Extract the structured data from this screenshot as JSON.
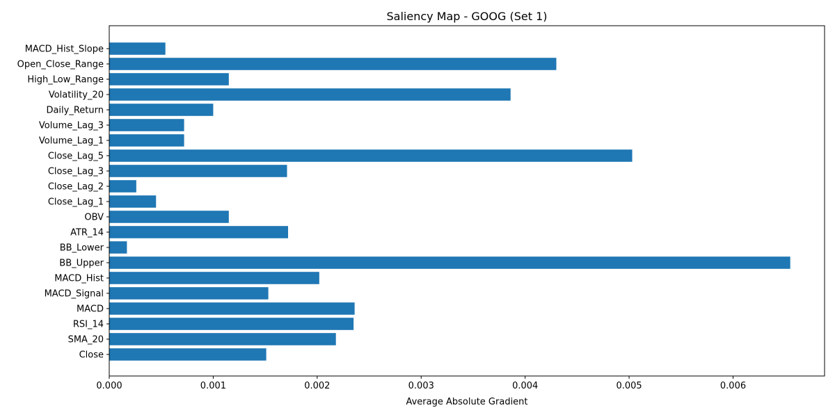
{
  "chart_data": {
    "type": "bar",
    "orientation": "horizontal",
    "title": "Saliency Map - GOOG (Set 1)",
    "xlabel": "Average Absolute Gradient",
    "ylabel": "",
    "xlim": [
      0,
      0.00688
    ],
    "xticks": [
      0.0,
      0.001,
      0.002,
      0.003,
      0.004,
      0.005,
      0.006
    ],
    "xtick_labels": [
      "0.000",
      "0.001",
      "0.002",
      "0.003",
      "0.004",
      "0.005",
      "0.006"
    ],
    "grid": false,
    "legend": "none",
    "bar_color": "#1f77b4",
    "categories": [
      "Close",
      "SMA_20",
      "RSI_14",
      "MACD",
      "MACD_Signal",
      "MACD_Hist",
      "BB_Upper",
      "BB_Lower",
      "ATR_14",
      "OBV",
      "Close_Lag_1",
      "Close_Lag_2",
      "Close_Lag_3",
      "Close_Lag_5",
      "Volume_Lag_1",
      "Volume_Lag_3",
      "Daily_Return",
      "Volatility_20",
      "High_Low_Range",
      "Open_Close_Range",
      "MACD_Hist_Slope"
    ],
    "values": [
      0.00151,
      0.00218,
      0.00235,
      0.00236,
      0.00153,
      0.00202,
      0.00655,
      0.00017,
      0.00172,
      0.00115,
      0.00045,
      0.00026,
      0.00171,
      0.00503,
      0.00072,
      0.00072,
      0.001,
      0.00386,
      0.00115,
      0.0043,
      0.00054
    ]
  }
}
